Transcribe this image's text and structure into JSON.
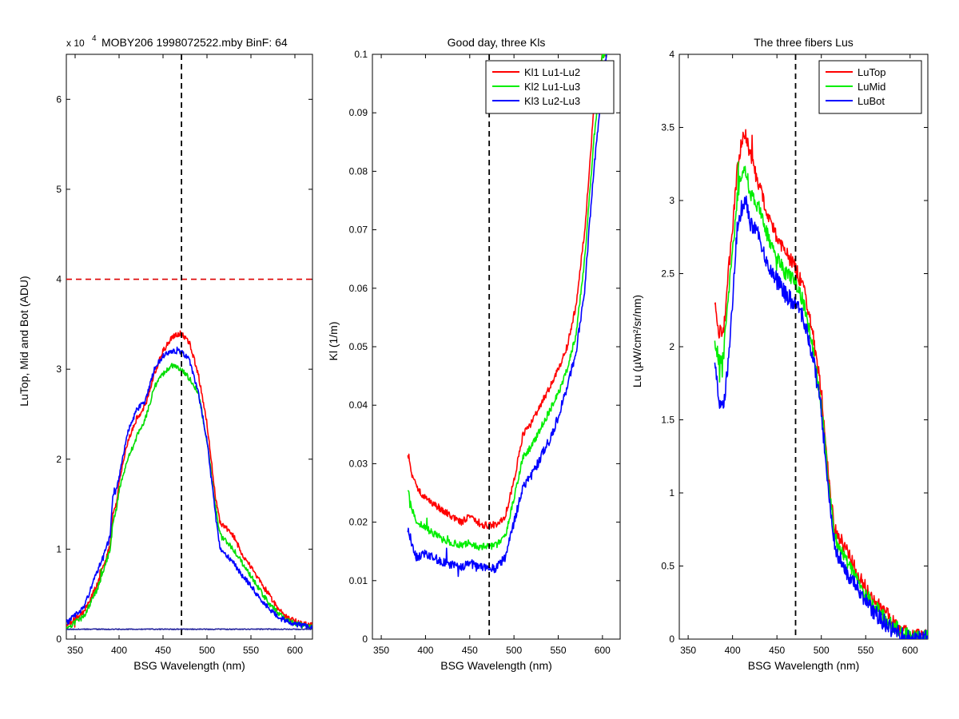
{
  "chart_data": [
    {
      "type": "line",
      "title": "MOBY206  1998072522.mby BinF: 64",
      "exponent_prefix": "x 10",
      "exponent_power": "4",
      "xlabel": "BSG Wavelength (nm)",
      "ylabel": "LuTop, Mid and Bot (ADU)",
      "xlim": [
        340,
        620
      ],
      "ylim": [
        0,
        6.5
      ],
      "xticks": [
        350,
        400,
        450,
        500,
        550,
        600
      ],
      "yticks": [
        0,
        1,
        2,
        3,
        4,
        5,
        6
      ],
      "grid": false,
      "legend": "none",
      "vline_x": 471,
      "hline_y": 4,
      "hline_color": "#dd0000",
      "series": [
        {
          "color": "#ff0000",
          "noise": 0.03,
          "x": [
            340,
            360,
            375,
            385,
            390,
            393,
            397,
            400,
            410,
            420,
            430,
            440,
            450,
            460,
            470,
            480,
            490,
            500,
            510,
            515,
            520,
            530,
            540,
            550,
            560,
            570,
            580,
            590,
            600,
            610,
            620
          ],
          "y": [
            0.15,
            0.3,
            0.6,
            0.9,
            1.05,
            1.4,
            1.5,
            1.75,
            2.2,
            2.45,
            2.6,
            2.95,
            3.2,
            3.35,
            3.4,
            3.3,
            2.95,
            2.4,
            1.55,
            1.3,
            1.25,
            1.15,
            0.95,
            0.8,
            0.65,
            0.5,
            0.35,
            0.25,
            0.2,
            0.17,
            0.15
          ]
        },
        {
          "color": "#00dd00",
          "noise": 0.03,
          "x": [
            340,
            360,
            375,
            385,
            390,
            393,
            397,
            400,
            410,
            420,
            430,
            440,
            450,
            460,
            470,
            480,
            490,
            500,
            510,
            515,
            520,
            530,
            540,
            550,
            560,
            570,
            580,
            590,
            600,
            610,
            620
          ],
          "y": [
            0.12,
            0.25,
            0.55,
            0.85,
            1.0,
            1.3,
            1.45,
            1.65,
            2.0,
            2.25,
            2.45,
            2.8,
            2.95,
            3.05,
            3.0,
            2.9,
            2.75,
            2.2,
            1.45,
            1.15,
            1.1,
            1.0,
            0.85,
            0.7,
            0.55,
            0.4,
            0.3,
            0.22,
            0.17,
            0.15,
            0.13
          ]
        },
        {
          "color": "#0000ff",
          "noise": 0.03,
          "x": [
            340,
            360,
            375,
            385,
            390,
            393,
            397,
            400,
            410,
            420,
            430,
            440,
            450,
            460,
            470,
            480,
            490,
            500,
            510,
            515,
            520,
            530,
            540,
            550,
            560,
            570,
            580,
            590,
            600,
            610,
            620
          ],
          "y": [
            0.18,
            0.35,
            0.75,
            1.0,
            1.15,
            1.6,
            1.65,
            1.8,
            2.3,
            2.55,
            2.65,
            3.0,
            3.15,
            3.2,
            3.2,
            3.1,
            2.75,
            2.2,
            1.35,
            1.0,
            0.95,
            0.85,
            0.7,
            0.6,
            0.45,
            0.35,
            0.25,
            0.2,
            0.17,
            0.15,
            0.13
          ]
        },
        {
          "color": "#2a2aa0",
          "noise": 0.005,
          "x": [
            340,
            620
          ],
          "y": [
            0.11,
            0.11
          ]
        }
      ]
    },
    {
      "type": "line",
      "title": "Good day, three Kls",
      "xlabel": "BSG Wavelength (nm)",
      "ylabel": "Kl (1/m)",
      "xlim": [
        340,
        620
      ],
      "ylim": [
        0,
        0.1
      ],
      "xticks": [
        350,
        400,
        450,
        500,
        550,
        600
      ],
      "yticks": [
        0,
        0.01,
        0.02,
        0.03,
        0.04,
        0.05,
        0.06,
        0.07,
        0.08,
        0.09,
        0.1
      ],
      "grid": false,
      "legend": "top-right",
      "vline_x": 472,
      "series": [
        {
          "name": "Kl1 Lu1-Lu2",
          "color": "#ff0000",
          "noise": 0.0006,
          "x": [
            380,
            385,
            390,
            400,
            410,
            420,
            430,
            440,
            450,
            460,
            470,
            480,
            490,
            500,
            510,
            520,
            530,
            540,
            550,
            560,
            570,
            580,
            590,
            600,
            605
          ],
          "y": [
            0.032,
            0.028,
            0.026,
            0.024,
            0.023,
            0.022,
            0.021,
            0.02,
            0.021,
            0.0195,
            0.0195,
            0.0195,
            0.021,
            0.027,
            0.035,
            0.037,
            0.04,
            0.043,
            0.046,
            0.05,
            0.057,
            0.07,
            0.09,
            0.1,
            0.1
          ]
        },
        {
          "name": "Kl2 Lu1-Lu3",
          "color": "#00ee00",
          "noise": 0.0006,
          "x": [
            380,
            385,
            390,
            400,
            410,
            420,
            430,
            440,
            450,
            460,
            470,
            480,
            490,
            500,
            510,
            520,
            530,
            540,
            550,
            560,
            570,
            580,
            590,
            600,
            605
          ],
          "y": [
            0.026,
            0.022,
            0.02,
            0.019,
            0.018,
            0.017,
            0.0165,
            0.016,
            0.0165,
            0.0158,
            0.0158,
            0.016,
            0.0175,
            0.024,
            0.031,
            0.033,
            0.036,
            0.039,
            0.042,
            0.046,
            0.052,
            0.065,
            0.085,
            0.1,
            0.1
          ]
        },
        {
          "name": "Kl3 Lu2-Lu3",
          "color": "#0000ff",
          "noise": 0.0008,
          "x": [
            380,
            385,
            390,
            400,
            410,
            420,
            430,
            440,
            450,
            460,
            470,
            480,
            490,
            500,
            510,
            520,
            530,
            540,
            550,
            560,
            570,
            580,
            590,
            600,
            605
          ],
          "y": [
            0.019,
            0.016,
            0.014,
            0.0145,
            0.014,
            0.013,
            0.0128,
            0.0125,
            0.013,
            0.0122,
            0.012,
            0.0122,
            0.014,
            0.02,
            0.026,
            0.028,
            0.031,
            0.034,
            0.038,
            0.043,
            0.049,
            0.06,
            0.08,
            0.095,
            0.1
          ]
        }
      ]
    },
    {
      "type": "line",
      "title": "The three fibers Lus",
      "xlabel": "BSG Wavelength (nm)",
      "ylabel": "Lu (µW/cm²/sr/nm)",
      "xlim": [
        340,
        620
      ],
      "ylim": [
        0,
        4
      ],
      "xticks": [
        350,
        400,
        450,
        500,
        550,
        600
      ],
      "yticks": [
        0,
        0.5,
        1,
        1.5,
        2,
        2.5,
        3,
        3.5,
        4
      ],
      "grid": false,
      "legend": "top-right",
      "vline_x": 471,
      "series": [
        {
          "name": "LuTop",
          "color": "#ff0000",
          "noise": 0.05,
          "x": [
            380,
            385,
            390,
            395,
            400,
            405,
            410,
            415,
            420,
            430,
            440,
            450,
            460,
            470,
            480,
            490,
            500,
            510,
            515,
            520,
            530,
            540,
            550,
            560,
            570,
            580,
            590,
            600,
            610,
            620
          ],
          "y": [
            2.3,
            2.1,
            2.1,
            2.5,
            2.8,
            3.2,
            3.4,
            3.45,
            3.3,
            3.1,
            2.9,
            2.75,
            2.65,
            2.55,
            2.4,
            2.1,
            1.7,
            1.0,
            0.75,
            0.7,
            0.6,
            0.45,
            0.35,
            0.25,
            0.2,
            0.12,
            0.06,
            0.03,
            0.02,
            0.02
          ]
        },
        {
          "name": "LuMid",
          "color": "#00ee00",
          "noise": 0.05,
          "x": [
            380,
            385,
            390,
            395,
            400,
            405,
            410,
            415,
            420,
            430,
            440,
            450,
            460,
            470,
            480,
            490,
            500,
            510,
            515,
            520,
            530,
            540,
            550,
            560,
            570,
            580,
            590,
            600,
            610,
            620
          ],
          "y": [
            2.05,
            1.9,
            1.95,
            2.35,
            2.65,
            3.0,
            3.2,
            3.2,
            3.05,
            2.95,
            2.75,
            2.6,
            2.5,
            2.45,
            2.3,
            2.0,
            1.6,
            0.95,
            0.7,
            0.62,
            0.52,
            0.4,
            0.3,
            0.22,
            0.16,
            0.1,
            0.05,
            0.02,
            0.01,
            0.01
          ]
        },
        {
          "name": "LuBot",
          "color": "#0000ff",
          "noise": 0.06,
          "x": [
            380,
            385,
            390,
            395,
            400,
            405,
            410,
            415,
            420,
            430,
            440,
            450,
            460,
            470,
            480,
            490,
            500,
            510,
            515,
            520,
            530,
            540,
            550,
            560,
            570,
            580,
            590,
            600,
            610,
            620
          ],
          "y": [
            1.9,
            1.6,
            1.6,
            1.9,
            2.3,
            2.8,
            2.95,
            3.0,
            2.85,
            2.75,
            2.55,
            2.45,
            2.35,
            2.3,
            2.2,
            1.95,
            1.55,
            0.9,
            0.65,
            0.55,
            0.45,
            0.35,
            0.25,
            0.18,
            0.12,
            0.07,
            0.03,
            0.01,
            0.0,
            0.0
          ]
        }
      ]
    }
  ]
}
